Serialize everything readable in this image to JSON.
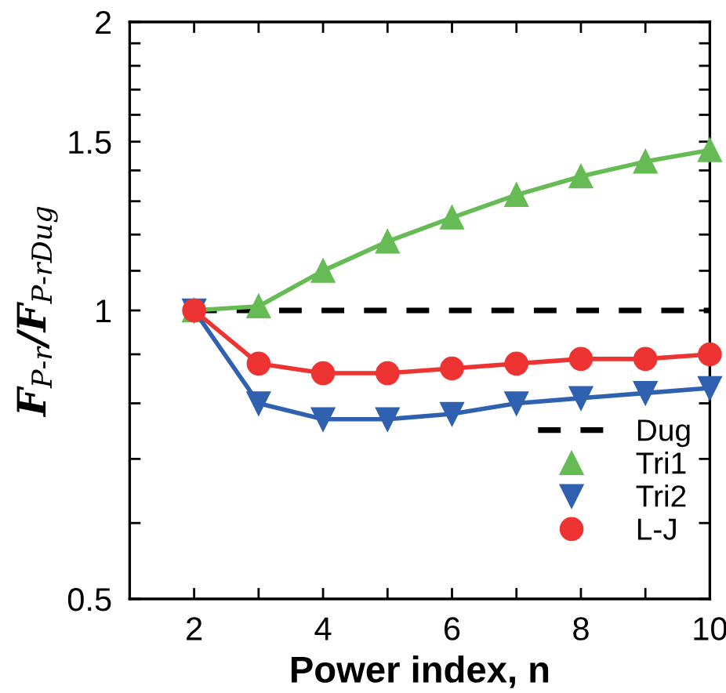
{
  "chart_data": {
    "type": "line",
    "xlabel": "Power index, n",
    "ylabel": "F$_{P-r}$/F$_{P-rDug}$",
    "xlim": [
      1,
      10
    ],
    "xticks": [
      2,
      4,
      6,
      8,
      10,
      {
        "value": 3,
        "label": null
      },
      {
        "value": 5,
        "label": null
      },
      {
        "value": 7,
        "label": null
      },
      {
        "value": 9,
        "label": null
      }
    ],
    "ylim": [
      0.5,
      2
    ],
    "yticks": [
      0.5,
      1,
      1.5,
      2,
      {
        "value": 0.6,
        "label": null
      },
      {
        "value": 0.7,
        "label": null
      },
      {
        "value": 0.8,
        "label": null
      },
      {
        "value": 0.9,
        "label": null
      },
      {
        "value": 1.1,
        "label": null
      },
      {
        "value": 1.2,
        "label": null
      },
      {
        "value": 1.3,
        "label": null
      },
      {
        "value": 1.4,
        "label": null
      },
      {
        "value": 1.6,
        "label": null
      },
      {
        "value": 1.7,
        "label": null
      },
      {
        "value": 1.8,
        "label": null
      },
      {
        "value": 1.9,
        "label": null
      }
    ],
    "log": "y",
    "grid": false,
    "legend": "bottom right",
    "series": [
      {
        "name": "Dug",
        "color": "#000000",
        "x": [
          2,
          10
        ],
        "values": [
          1,
          1
        ],
        "line_style": "dashed",
        "marker": "none"
      },
      {
        "name": "Tri1",
        "color": "#66bb55",
        "x": [
          2,
          3,
          4,
          5,
          6,
          7,
          8,
          9,
          10
        ],
        "values": [
          1.0,
          1.01,
          1.1,
          1.18,
          1.25,
          1.32,
          1.38,
          1.43,
          1.47
        ],
        "marker": "triangle"
      },
      {
        "name": "Tri2",
        "color": "#3060b0",
        "x": [
          2,
          3,
          4,
          5,
          6,
          7,
          8,
          9,
          10
        ],
        "values": [
          1.0,
          0.8,
          0.77,
          0.77,
          0.78,
          0.8,
          0.81,
          0.82,
          0.83
        ],
        "marker": "triangle_down"
      },
      {
        "name": "L-J",
        "color": "#ee3333",
        "x": [
          2,
          3,
          4,
          5,
          6,
          7,
          8,
          9,
          10
        ],
        "values": [
          1.0,
          0.88,
          0.86,
          0.86,
          0.87,
          0.88,
          0.89,
          0.89,
          0.9
        ],
        "marker": "circle"
      }
    ]
  }
}
